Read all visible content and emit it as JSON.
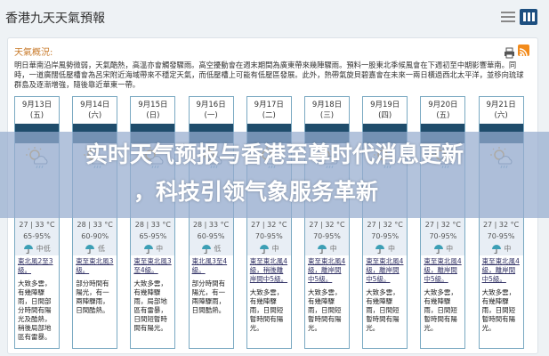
{
  "header": {
    "title": "香港九天天氣預報",
    "view_list_icon": "list-icon",
    "view_grid_icon": "grid-icon"
  },
  "summary": {
    "title": "天氣概況:",
    "text": "明日華南沿岸風勢微弱，天氣酷熱，高溫亦會觸發驟雨。高空擾動會在週末期間為廣東帶來幾陣驟雨。預料一股東北季候風會在下週初至中期影響華南。同時，一道廣闊低壓槽會為呂宋附近海域帶來不穩定天氣，而低壓槽上可能有低壓區發展。此外，熱帶氣旋貝碧嘉會在未來一兩日橫過西北太平洋，並移向琉球群島及逐漸增強，隨後靠近華東一帶。"
  },
  "accent": "#1f4c6b",
  "days": [
    {
      "date": "9月13日",
      "dow": "(五)",
      "temp": "27 | 33 °C",
      "hum": "65-95%",
      "rain": "中低",
      "wind": "東北風2至3級。",
      "desc": "大致多雲，有幾陣驟雨，日間部分時間有陽光及酷熱，稍後局部地區有雷暴。"
    },
    {
      "date": "9月14日",
      "dow": "(六)",
      "temp": "28 | 33 °C",
      "hum": "60-90%",
      "rain": "低",
      "wind": "東至東北風3級。",
      "desc": "部分時間有陽光，有一兩陣驟雨，日間酷熱。"
    },
    {
      "date": "9月15日",
      "dow": "(日)",
      "temp": "28 | 33 °C",
      "hum": "65-95%",
      "rain": "中",
      "wind": "東至東北風3至4級。",
      "desc": "大致多雲，有幾陣驟雨，局部地區有雷暴，日間短暫時間有陽光。"
    },
    {
      "date": "9月16日",
      "dow": "(一)",
      "temp": "28 | 33 °C",
      "hum": "60-95%",
      "rain": "低",
      "wind": "東北風3至4級。",
      "desc": "部分時間有陽光，有一兩陣驟雨，日間酷熱。"
    },
    {
      "date": "9月17日",
      "dow": "(二)",
      "temp": "27 | 32 °C",
      "hum": "70-95%",
      "rain": "中",
      "wind": "東至東北風4級，稍後離岸間中5級。",
      "desc": "大致多雲，有幾陣驟雨，日間短暫時間有陽光。"
    },
    {
      "date": "9月18日",
      "dow": "(三)",
      "temp": "27 | 32 °C",
      "hum": "70-95%",
      "rain": "中",
      "wind": "東至東北風4級，離岸間中5級。",
      "desc": "大致多雲，有幾陣驟雨，日間短暫時間有陽光。"
    },
    {
      "date": "9月19日",
      "dow": "(四)",
      "temp": "27 | 32 °C",
      "hum": "70-95%",
      "rain": "中",
      "wind": "東至東北風4級，離岸間中5級。",
      "desc": "大致多雲，有幾陣驟雨，日間短暫時間有陽光。"
    },
    {
      "date": "9月20日",
      "dow": "(五)",
      "temp": "27 | 32 °C",
      "hum": "70-95%",
      "rain": "中",
      "wind": "東至東北風4級，離岸間中5級。",
      "desc": "大致多雲，有幾陣驟雨，日間短暫時間有陽光。"
    },
    {
      "date": "9月21日",
      "dow": "(六)",
      "temp": "27 | 32 °C",
      "hum": "70-95%",
      "rain": "中",
      "wind": "東至東北風4級，離岸間中5級。",
      "desc": "大致多雲，有幾陣驟雨，日間短暫時間有陽光。"
    }
  ],
  "banner": {
    "line1": "实时天气预报与香港至尊时代消息更新",
    "line2": "，科技引领气象服务革新"
  }
}
